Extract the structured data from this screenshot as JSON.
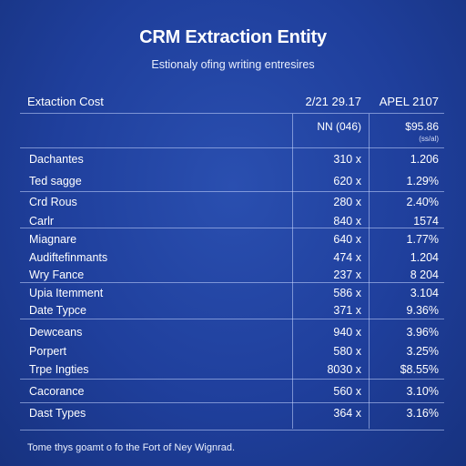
{
  "title": "CRM Extraction Entity",
  "subtitle": "Estionaly ofing writing entresires",
  "header": {
    "label": "Extaction Cost",
    "col2": "2/21 29.17",
    "col3": "APEL 2107",
    "col2_sub": "NN (046)",
    "col3_sub": "$95.86",
    "col3_note": "(ss/al)"
  },
  "rows": [
    {
      "label": "Dachantes",
      "v1": "310 x",
      "v2": "1.206"
    },
    {
      "label": "Ted sagge",
      "v1": "620 x",
      "v2": "1.29%"
    },
    {
      "label": "Crd Rous",
      "v1": "280 x",
      "v2": "2.40%"
    },
    {
      "label": "Carlr",
      "v1": "840 x",
      "v2": "1574"
    },
    {
      "label": "Miagnare",
      "v1": "640 x",
      "v2": "1.77%"
    },
    {
      "label": "Audiftefinmants",
      "v1": "474 x",
      "v2": "1.204"
    },
    {
      "label": "Wry Fance",
      "v1": "237 x",
      "v2": "8 204"
    },
    {
      "label": "Upia Itemment",
      "v1": "586 x",
      "v2": "3.104"
    },
    {
      "label": "Date Typce",
      "v1": "371 x",
      "v2": "9.36%"
    },
    {
      "label": "Dewceans",
      "v1": "940 x",
      "v2": "3.96%"
    },
    {
      "label": "Porpert",
      "v1": "580 x",
      "v2": "3.25%"
    },
    {
      "label": "Trpe Ingties",
      "v1": "8030 x",
      "v2": "$8.55%"
    },
    {
      "label": "Cacorance",
      "v1": "560 x",
      "v2": "3.10%"
    },
    {
      "label": "Dast Types",
      "v1": "364 x",
      "v2": "3.16%"
    }
  ],
  "footer": "Tome thys goamt o fo the Fort of Ney Wignrad."
}
